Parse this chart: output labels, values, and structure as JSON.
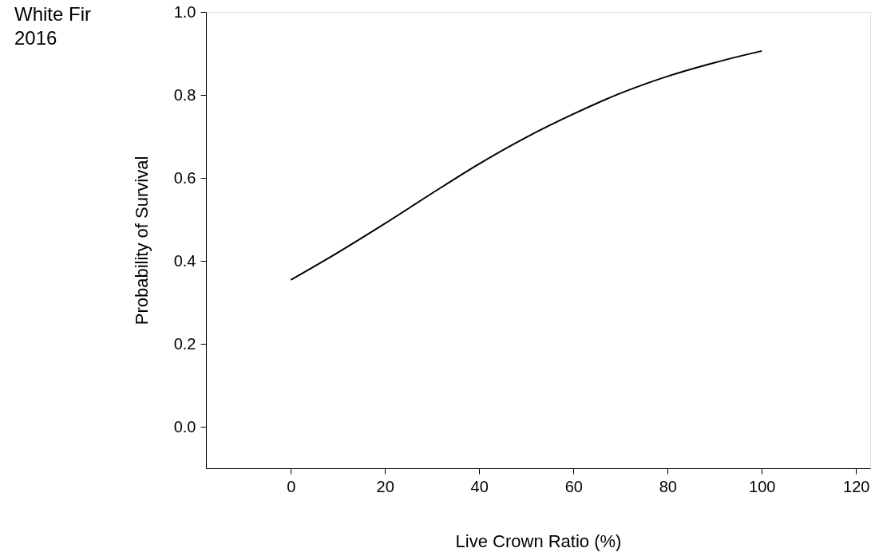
{
  "chart_data": {
    "type": "line",
    "title": "White Fir\n2016",
    "xlabel": "Live Crown Ratio (%)",
    "ylabel": "Probability of Survival",
    "x": [
      0,
      10,
      20,
      30,
      40,
      50,
      60,
      70,
      80,
      90,
      100
    ],
    "series": [
      {
        "color": "#000000",
        "values": [
          0.354,
          0.42,
          0.49,
          0.563,
          0.634,
          0.698,
          0.754,
          0.804,
          0.845,
          0.878,
          0.906
        ]
      }
    ],
    "xlim": [
      -18,
      123
    ],
    "ylim": [
      -0.1,
      1.0
    ],
    "xticks": [
      0,
      20,
      40,
      60,
      80,
      100,
      120
    ],
    "yticks": [
      {
        "value": 0,
        "label": "0.0"
      },
      0.2,
      0.4,
      0.6,
      0.8,
      {
        "value": 1,
        "label": "1.0"
      }
    ],
    "grid": false,
    "marker": "none",
    "line_style": "solid"
  }
}
